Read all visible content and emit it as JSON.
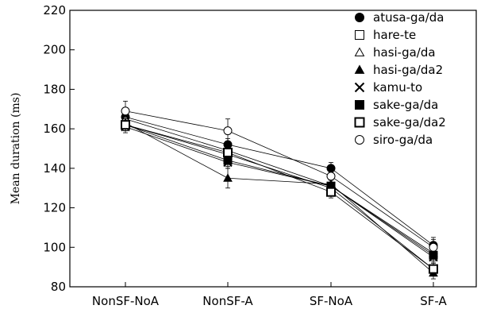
{
  "chart_data": {
    "type": "line",
    "categories": [
      "NonSF-NoA",
      "NonSF-A",
      "SF-NoA",
      "SF-A"
    ],
    "ylabel": "Mean duration (ms)",
    "xlabel": "",
    "ylim": [
      80,
      220
    ],
    "yticks": [
      80,
      100,
      120,
      140,
      160,
      180,
      200,
      220
    ],
    "grid": false,
    "legend_position": "top-right",
    "series": [
      {
        "name": "atusa-ga/da",
        "marker": "circle-filled",
        "values": [
          166,
          152,
          140,
          101
        ],
        "err": [
          3,
          3,
          3,
          3
        ]
      },
      {
        "name": "hare-te",
        "marker": "square-open",
        "values": [
          162,
          147,
          130,
          89
        ],
        "err": [
          3,
          3,
          3,
          3
        ]
      },
      {
        "name": "hasi-ga/da",
        "marker": "triangle-open",
        "values": [
          165,
          149,
          131,
          97
        ],
        "err": [
          3,
          3,
          3,
          3
        ]
      },
      {
        "name": "hasi-ga/da2",
        "marker": "triangle-filled",
        "values": [
          163,
          135,
          132,
          87
        ],
        "err": [
          3,
          5,
          3,
          3
        ]
      },
      {
        "name": "kamu-to",
        "marker": "x",
        "values": [
          161,
          143,
          131,
          95
        ],
        "err": [
          3,
          3,
          3,
          3
        ]
      },
      {
        "name": "sake-ga/da",
        "marker": "square-filled",
        "values": [
          162,
          144,
          131,
          96
        ],
        "err": [
          3,
          3,
          3,
          3
        ]
      },
      {
        "name": "sake-ga/da2",
        "marker": "square-open-bold",
        "values": [
          162,
          148,
          128,
          89
        ],
        "err": [
          3,
          3,
          3,
          3
        ]
      },
      {
        "name": "siro-ga/da",
        "marker": "circle-open",
        "values": [
          169,
          159,
          136,
          100
        ],
        "err": [
          5,
          6,
          4,
          5
        ]
      }
    ]
  }
}
